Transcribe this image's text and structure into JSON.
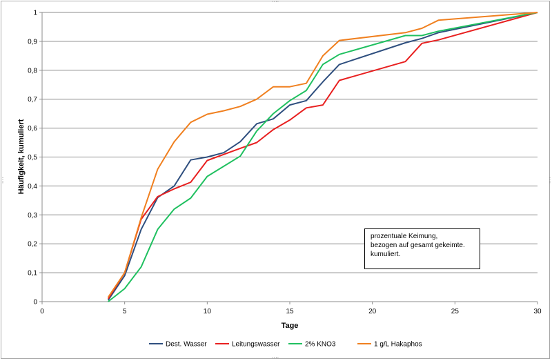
{
  "chart_data": {
    "type": "line",
    "xlabel": "Tage",
    "ylabel": "Häufigkeit, kumuliert",
    "xlim": [
      0,
      30
    ],
    "ylim": [
      0,
      1
    ],
    "x_ticks": [
      "0",
      "5",
      "10",
      "15",
      "20",
      "25",
      "30"
    ],
    "y_ticks": [
      "0",
      "0,1",
      "0,2",
      "0,3",
      "0,4",
      "0,5",
      "0,6",
      "0,7",
      "0,8",
      "0,9",
      "1"
    ],
    "grid": "horizontal",
    "legend_position": "bottom",
    "annotation": [
      "prozentuale Keimung,",
      "bezogen auf gesamt gekeimte.",
      "kumuliert."
    ],
    "series": [
      {
        "name": "Dest. Wasser",
        "color": "#2f4f7f",
        "points": [
          [
            4,
            0.005
          ],
          [
            5,
            0.09
          ],
          [
            6,
            0.25
          ],
          [
            7,
            0.36
          ],
          [
            8,
            0.4
          ],
          [
            9,
            0.49
          ],
          [
            10,
            0.5
          ],
          [
            11,
            0.515
          ],
          [
            12,
            0.553
          ],
          [
            13,
            0.615
          ],
          [
            14,
            0.632
          ],
          [
            15,
            0.68
          ],
          [
            16,
            0.695
          ],
          [
            17,
            0.76
          ],
          [
            18,
            0.82
          ],
          [
            22,
            0.895
          ],
          [
            23,
            0.91
          ],
          [
            24,
            0.93
          ],
          [
            30,
            1.0
          ]
        ]
      },
      {
        "name": "Leitungswasser",
        "color": "#e82020",
        "points": [
          [
            4,
            0.01
          ],
          [
            5,
            0.1
          ],
          [
            6,
            0.285
          ],
          [
            7,
            0.363
          ],
          [
            8,
            0.39
          ],
          [
            9,
            0.413
          ],
          [
            10,
            0.488
          ],
          [
            12,
            0.53
          ],
          [
            13,
            0.55
          ],
          [
            14,
            0.595
          ],
          [
            15,
            0.628
          ],
          [
            16,
            0.67
          ],
          [
            17,
            0.68
          ],
          [
            18,
            0.765
          ],
          [
            22,
            0.83
          ],
          [
            23,
            0.893
          ],
          [
            24,
            0.905
          ],
          [
            30,
            1.0
          ]
        ]
      },
      {
        "name": "2% KNO3",
        "color": "#20c060",
        "points": [
          [
            4,
            0.0
          ],
          [
            5,
            0.045
          ],
          [
            6,
            0.12
          ],
          [
            7,
            0.25
          ],
          [
            8,
            0.32
          ],
          [
            9,
            0.358
          ],
          [
            10,
            0.433
          ],
          [
            11,
            0.468
          ],
          [
            12,
            0.503
          ],
          [
            13,
            0.59
          ],
          [
            14,
            0.65
          ],
          [
            15,
            0.695
          ],
          [
            16,
            0.73
          ],
          [
            17,
            0.82
          ],
          [
            18,
            0.855
          ],
          [
            22,
            0.92
          ],
          [
            23,
            0.92
          ],
          [
            24,
            0.935
          ],
          [
            30,
            1.0
          ]
        ]
      },
      {
        "name": "1 g/L Hakaphos",
        "color": "#f08020",
        "points": [
          [
            4,
            0.015
          ],
          [
            5,
            0.1
          ],
          [
            6,
            0.29
          ],
          [
            7,
            0.458
          ],
          [
            8,
            0.553
          ],
          [
            9,
            0.62
          ],
          [
            10,
            0.648
          ],
          [
            11,
            0.66
          ],
          [
            12,
            0.675
          ],
          [
            13,
            0.7
          ],
          [
            14,
            0.743
          ],
          [
            15,
            0.743
          ],
          [
            16,
            0.755
          ],
          [
            17,
            0.85
          ],
          [
            18,
            0.903
          ],
          [
            22,
            0.93
          ],
          [
            23,
            0.945
          ],
          [
            24,
            0.973
          ],
          [
            30,
            1.0
          ]
        ]
      }
    ]
  }
}
